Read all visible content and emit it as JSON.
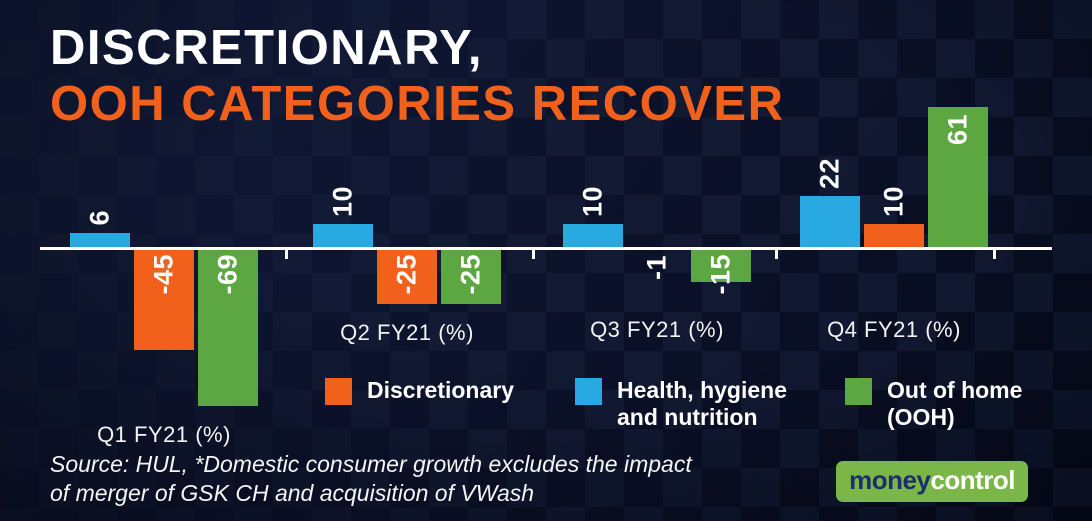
{
  "title": {
    "line1": "DISCRETIONARY,",
    "line2": "OOH CATEGORIES RECOVER"
  },
  "chart_data": {
    "type": "bar",
    "categories": [
      "Q1 FY21 (%)",
      "Q2 FY21 (%)",
      "Q3 FY21 (%)",
      "Q4 FY21 (%)"
    ],
    "series": [
      {
        "name": "Health, hygiene and nutrition",
        "color": "#29a9e1",
        "values": [
          6,
          10,
          10,
          22
        ]
      },
      {
        "name": "Discretionary",
        "color": "#f2611c",
        "values": [
          -45,
          -25,
          -1,
          10
        ]
      },
      {
        "name": "Out of home (OOH)",
        "color": "#5ca742",
        "values": [
          -69,
          -25,
          -15,
          61
        ]
      }
    ],
    "ylim": [
      -69,
      61
    ],
    "baseline_value": 0,
    "grid": false,
    "value_labels": "rotated-90",
    "legend_position": "bottom"
  },
  "legend": {
    "items": [
      {
        "label": "Discretionary",
        "color": "#f2611c"
      },
      {
        "label": "Health, hygiene\nand nutrition",
        "color": "#29a9e1"
      },
      {
        "label": "Out of home\n(OOH)",
        "color": "#5ca742"
      }
    ]
  },
  "source": {
    "text": "Source: HUL, *Domestic consumer growth excludes the impact\nof merger of GSK CH and acquisition of VWash"
  },
  "logo": {
    "part1": "money",
    "part2": "control",
    "bg_color": "#7ab648",
    "part1_color": "#1d2e6e",
    "part2_color": "#ffffff"
  },
  "colors": {
    "background": "#0b1129",
    "accent_orange": "#f2611c",
    "accent_blue": "#29a9e1",
    "accent_green": "#5ca742",
    "axis": "#ffffff"
  }
}
